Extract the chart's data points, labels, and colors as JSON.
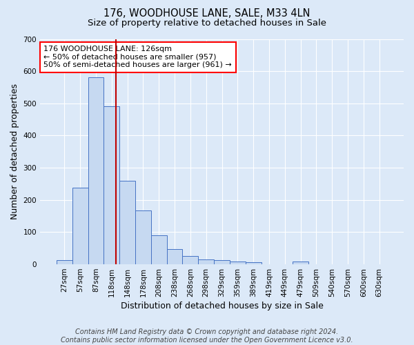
{
  "title_line1": "176, WOODHOUSE LANE, SALE, M33 4LN",
  "title_line2": "Size of property relative to detached houses in Sale",
  "xlabel": "Distribution of detached houses by size in Sale",
  "ylabel": "Number of detached properties",
  "bar_labels": [
    "27sqm",
    "57sqm",
    "87sqm",
    "118sqm",
    "148sqm",
    "178sqm",
    "208sqm",
    "238sqm",
    "268sqm",
    "298sqm",
    "329sqm",
    "359sqm",
    "389sqm",
    "419sqm",
    "449sqm",
    "479sqm",
    "509sqm",
    "540sqm",
    "570sqm",
    "600sqm",
    "630sqm"
  ],
  "bar_values": [
    12,
    238,
    580,
    490,
    260,
    168,
    90,
    47,
    25,
    15,
    12,
    9,
    6,
    0,
    0,
    8,
    0,
    0,
    0,
    0,
    0
  ],
  "bar_color": "#c6d9f1",
  "bar_edge_color": "#4472c4",
  "ylim": [
    0,
    700
  ],
  "yticks": [
    0,
    100,
    200,
    300,
    400,
    500,
    600,
    700
  ],
  "red_line_x": 3.27,
  "red_line_color": "#c00000",
  "annotation_text": "176 WOODHOUSE LANE: 126sqm\n← 50% of detached houses are smaller (957)\n50% of semi-detached houses are larger (961) →",
  "annotation_box_color": "white",
  "annotation_border_color": "red",
  "footer_text": "Contains HM Land Registry data © Crown copyright and database right 2024.\nContains public sector information licensed under the Open Government Licence v3.0.",
  "bg_color": "#dce9f8",
  "grid_color": "white",
  "title_fontsize": 10.5,
  "subtitle_fontsize": 9.5,
  "axis_label_fontsize": 9,
  "tick_fontsize": 7.5,
  "footer_fontsize": 7,
  "annotation_fontsize": 8
}
